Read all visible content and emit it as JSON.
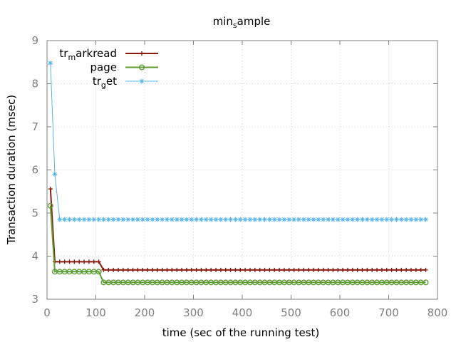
{
  "chart_data": {
    "type": "line",
    "title": {
      "base": "min",
      "sub": "s",
      "rest": "ample"
    },
    "xlabel": "time (sec of the running test)",
    "ylabel": "Transaction duration (msec)",
    "xlim": [
      0,
      800
    ],
    "ylim": [
      3,
      9
    ],
    "xticks": [
      "0",
      "100",
      "200",
      "300",
      "400",
      "500",
      "600",
      "700",
      "800"
    ],
    "yticks": [
      "3",
      "4",
      "5",
      "6",
      "7",
      "8",
      "9"
    ],
    "grid": true,
    "legend_position": "top-left",
    "series": [
      {
        "name": {
          "base": "tr",
          "sub": "m",
          "rest": "arkread"
        },
        "color": "#8b1a0e",
        "marker": "plus",
        "x": [
          7,
          16,
          26,
          36,
          46,
          56,
          66,
          76,
          86,
          96,
          106,
          116,
          126,
          136,
          146,
          156,
          166,
          176,
          186,
          196,
          206,
          216,
          226,
          236,
          246,
          256,
          266,
          276,
          286,
          296,
          306,
          316,
          326,
          336,
          346,
          356,
          366,
          376,
          386,
          396,
          406,
          416,
          426,
          436,
          446,
          456,
          466,
          476,
          486,
          496,
          506,
          516,
          526,
          536,
          546,
          556,
          566,
          576,
          586,
          596,
          606,
          616,
          626,
          636,
          646,
          656,
          666,
          676,
          686,
          696,
          706,
          716,
          726,
          736,
          746,
          756,
          766,
          776
        ],
        "y": [
          5.56,
          3.87,
          3.87,
          3.87,
          3.87,
          3.87,
          3.87,
          3.87,
          3.87,
          3.87,
          3.87,
          3.68,
          3.68,
          3.68,
          3.68,
          3.68,
          3.68,
          3.68,
          3.68,
          3.68,
          3.68,
          3.68,
          3.68,
          3.68,
          3.68,
          3.68,
          3.68,
          3.68,
          3.68,
          3.68,
          3.68,
          3.68,
          3.68,
          3.68,
          3.68,
          3.68,
          3.68,
          3.68,
          3.68,
          3.68,
          3.68,
          3.68,
          3.68,
          3.68,
          3.68,
          3.68,
          3.68,
          3.68,
          3.68,
          3.68,
          3.68,
          3.68,
          3.68,
          3.68,
          3.68,
          3.68,
          3.68,
          3.68,
          3.68,
          3.68,
          3.68,
          3.68,
          3.68,
          3.68,
          3.68,
          3.68,
          3.68,
          3.68,
          3.68,
          3.68,
          3.68,
          3.68,
          3.68,
          3.68,
          3.68,
          3.68,
          3.68,
          3.68
        ]
      },
      {
        "name": {
          "base": "page",
          "sub": "",
          "rest": ""
        },
        "color": "#5e9c36",
        "marker": "circle",
        "x": [
          7,
          16,
          26,
          36,
          46,
          56,
          66,
          76,
          86,
          96,
          106,
          116,
          126,
          136,
          146,
          156,
          166,
          176,
          186,
          196,
          206,
          216,
          226,
          236,
          246,
          256,
          266,
          276,
          286,
          296,
          306,
          316,
          326,
          336,
          346,
          356,
          366,
          376,
          386,
          396,
          406,
          416,
          426,
          436,
          446,
          456,
          466,
          476,
          486,
          496,
          506,
          516,
          526,
          536,
          546,
          556,
          566,
          576,
          586,
          596,
          606,
          616,
          626,
          636,
          646,
          656,
          666,
          676,
          686,
          696,
          706,
          716,
          726,
          736,
          746,
          756,
          766,
          776
        ],
        "y": [
          5.17,
          3.64,
          3.64,
          3.64,
          3.64,
          3.64,
          3.64,
          3.64,
          3.64,
          3.64,
          3.64,
          3.39,
          3.39,
          3.39,
          3.39,
          3.39,
          3.39,
          3.39,
          3.39,
          3.39,
          3.39,
          3.39,
          3.39,
          3.39,
          3.39,
          3.39,
          3.39,
          3.39,
          3.39,
          3.39,
          3.39,
          3.39,
          3.39,
          3.39,
          3.39,
          3.39,
          3.39,
          3.39,
          3.39,
          3.39,
          3.39,
          3.39,
          3.39,
          3.39,
          3.39,
          3.39,
          3.39,
          3.39,
          3.39,
          3.39,
          3.39,
          3.39,
          3.39,
          3.39,
          3.39,
          3.39,
          3.39,
          3.39,
          3.39,
          3.39,
          3.39,
          3.39,
          3.39,
          3.39,
          3.39,
          3.39,
          3.39,
          3.39,
          3.39,
          3.39,
          3.39,
          3.39,
          3.39,
          3.39,
          3.39,
          3.39,
          3.39,
          3.39
        ]
      },
      {
        "name": {
          "base": "tr",
          "sub": "g",
          "rest": "et"
        },
        "color": "#56b4e9",
        "marker": "star",
        "x": [
          7,
          16,
          26,
          36,
          46,
          56,
          66,
          76,
          86,
          96,
          106,
          116,
          126,
          136,
          146,
          156,
          166,
          176,
          186,
          196,
          206,
          216,
          226,
          236,
          246,
          256,
          266,
          276,
          286,
          296,
          306,
          316,
          326,
          336,
          346,
          356,
          366,
          376,
          386,
          396,
          406,
          416,
          426,
          436,
          446,
          456,
          466,
          476,
          486,
          496,
          506,
          516,
          526,
          536,
          546,
          556,
          566,
          576,
          586,
          596,
          606,
          616,
          626,
          636,
          646,
          656,
          666,
          676,
          686,
          696,
          706,
          716,
          726,
          736,
          746,
          756,
          766,
          776
        ],
        "y": [
          8.48,
          5.9,
          4.85,
          4.85,
          4.85,
          4.85,
          4.85,
          4.85,
          4.85,
          4.85,
          4.85,
          4.85,
          4.85,
          4.85,
          4.85,
          4.85,
          4.85,
          4.85,
          4.85,
          4.85,
          4.85,
          4.85,
          4.85,
          4.85,
          4.85,
          4.85,
          4.85,
          4.85,
          4.85,
          4.85,
          4.85,
          4.85,
          4.85,
          4.85,
          4.85,
          4.85,
          4.85,
          4.85,
          4.85,
          4.85,
          4.85,
          4.85,
          4.85,
          4.85,
          4.85,
          4.85,
          4.85,
          4.85,
          4.85,
          4.85,
          4.85,
          4.85,
          4.85,
          4.85,
          4.85,
          4.85,
          4.85,
          4.85,
          4.85,
          4.85,
          4.85,
          4.85,
          4.85,
          4.85,
          4.85,
          4.85,
          4.85,
          4.85,
          4.85,
          4.85,
          4.85,
          4.85,
          4.85,
          4.85,
          4.85,
          4.85,
          4.85,
          4.85
        ]
      }
    ]
  }
}
